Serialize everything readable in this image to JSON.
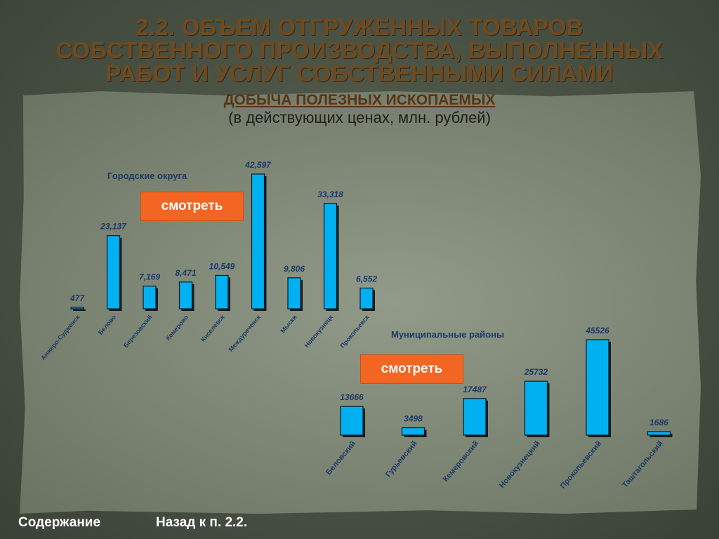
{
  "page": {
    "title_lines": [
      "2.2. ОБЪЕМ ОТГРУЖЕННЫХ ТОВАРОВ",
      "СОБСТВЕННОГО ПРОИЗВОДСТВА, ВЫПОЛНЕННЫХ",
      "РАБОТ И УСЛУГ СОБСТВЕННЫМИ СИЛАМИ"
    ],
    "subtitle": "ДОБЫЧА ПОЛЕЗНЫХ ИСКОПАЕМЫХ",
    "units": "(в действующих ценах, млн. рублей)"
  },
  "buttons": {
    "view_label_1": "смотреть",
    "view_label_2": "смотреть"
  },
  "footer": {
    "contents_label": "Содержание",
    "back_label": "Назад к п. 2.2."
  },
  "colors": {
    "bar_fill": "#00b0f0",
    "bar_shadow": "#1a1a1a",
    "value_label": "#1d3a66",
    "category_label": "#1d3a66",
    "button_bg": "#f26522",
    "title": "#704a1e"
  },
  "chart_data": [
    {
      "type": "bar",
      "title": "Городские округа",
      "categories": [
        "Анжеро-Судженск",
        "Белово",
        "Березовский",
        "Кемерово",
        "Киселевск",
        "Междуреченск",
        "Мыски",
        "Новокузнецк",
        "Прокопьевск"
      ],
      "values": [
        477,
        23137,
        7169,
        8471,
        10549,
        42597,
        9806,
        33318,
        6552
      ],
      "value_labels": [
        "477",
        "23,137",
        "7,169",
        "8,471",
        "10,549",
        "42,597",
        "9,806",
        "33,318",
        "6,552"
      ],
      "ylim": [
        0,
        42597
      ],
      "grid": false
    },
    {
      "type": "bar",
      "title": "Муниципальные районы",
      "categories": [
        "Беловский",
        "Гурьевский",
        "Кемеровский",
        "Новокузнецкий",
        "Прокопьевский",
        "Таштагольский"
      ],
      "values": [
        13666,
        3498,
        17487,
        25732,
        45526,
        1686
      ],
      "value_labels": [
        "13666",
        "3498",
        "17487",
        "25732",
        "45526",
        "1686"
      ],
      "ylim": [
        0,
        45526
      ],
      "grid": false
    }
  ]
}
